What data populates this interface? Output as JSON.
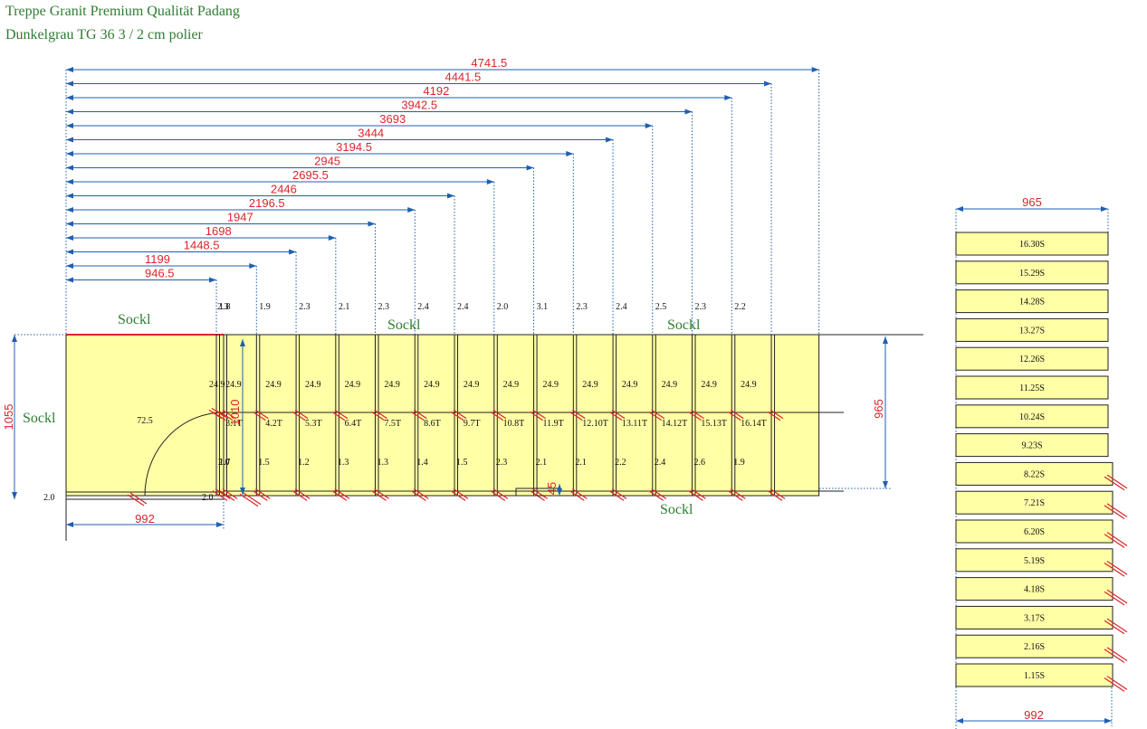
{
  "title_line1": "Treppe Granit Premium Qualität Padang",
  "title_line2": "Dunkelgrau TG 36 3 / 2 cm polier",
  "colors": {
    "title": "#2e7d32",
    "dimension": "#d8262c",
    "dimension_line": "#1f5fb0",
    "stone_fill": "#ffffa6",
    "cut_mark": "#d8262c"
  },
  "top_dimensions": [
    "946.5",
    "1199",
    "1448.5",
    "1698",
    "1947",
    "2196.5",
    "2446",
    "2695.5",
    "2945",
    "3194.5",
    "3444",
    "3693",
    "3942.5",
    "4192",
    "4441.5",
    "4741.5"
  ],
  "gap_labels": [
    "2.3",
    "1.8",
    "1.9",
    "2.3",
    "2.1",
    "2.3",
    "2.4",
    "2.4",
    "2.0",
    "3.1",
    "2.3",
    "2.4",
    "2.5",
    "2.3",
    "2.2"
  ],
  "tread_depth_labels": [
    "24.9",
    "24.9",
    "24.9",
    "24.9",
    "24.9",
    "24.9",
    "24.9",
    "24.9",
    "24.9",
    "24.9",
    "24.9",
    "24.9",
    "24.9",
    "24.9",
    "24.9"
  ],
  "tread_labels": [
    "3.1T",
    "4.2T",
    "5.3T",
    "6.4T",
    "7.5T",
    "8.6T",
    "9.7T",
    "10.8T",
    "11.9T",
    "12.10T",
    "13.11T",
    "14.12T",
    "15.13T",
    "16.14T"
  ],
  "lower_gap_labels": [
    "1.7",
    "2.0",
    "1.5",
    "1.2",
    "1.3",
    "1.3",
    "1.4",
    "1.5",
    "2.3",
    "2.1",
    "2.1",
    "2.2",
    "2.4",
    "2.6",
    "1.9"
  ],
  "sockl_label": "Sockl",
  "landing": {
    "radius_label": "72.5",
    "width_label": "992",
    "height_label": "1055",
    "inner_height_label": "1010",
    "bottom_left_label": "2.0",
    "bottom_right_label": "2.0"
  },
  "right_height_label": "965",
  "small_offset_label": "45",
  "riser_panel": {
    "top_width_label": "965",
    "bottom_width_label": "992",
    "pieces": [
      "16.30S",
      "15.29S",
      "14.28S",
      "13.27S",
      "12.26S",
      "11.25S",
      "10.24S",
      "9.23S",
      "8.22S",
      "7.21S",
      "6.20S",
      "5.19S",
      "4.18S",
      "3.17S",
      "2.16S",
      "1.15S"
    ]
  }
}
